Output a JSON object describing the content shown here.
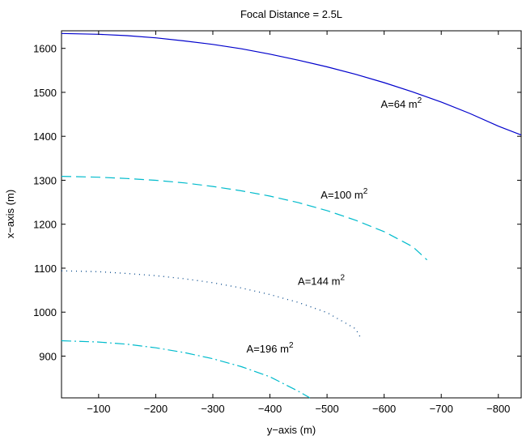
{
  "chart_data": {
    "type": "line",
    "title": "Focal Distance = 2.5L",
    "xlabel": "y−axis (m)",
    "ylabel": "x−axis (m)",
    "xlim": [
      -35,
      -840
    ],
    "ylim": [
      805,
      1640
    ],
    "x_reversed": true,
    "x_ticks": [
      -100,
      -200,
      -300,
      -400,
      -500,
      -600,
      -700,
      -800
    ],
    "x_tick_labels": [
      "−100",
      "−200",
      "−300",
      "−400",
      "−500",
      "−600",
      "−700",
      "−800"
    ],
    "y_ticks": [
      900,
      1000,
      1100,
      1200,
      1300,
      1400,
      1500,
      1600
    ],
    "y_tick_labels": [
      "900",
      "1000",
      "1100",
      "1200",
      "1300",
      "1400",
      "1500",
      "1600"
    ],
    "grid": false,
    "legend": "none",
    "series": [
      {
        "style": "solid",
        "color": "#0000cc",
        "annotation": {
          "text": "A=64 m",
          "sup": "2",
          "x": -630,
          "y": 1465
        },
        "x": [
          -35,
          -100,
          -150,
          -200,
          -250,
          -300,
          -350,
          -400,
          -450,
          -500,
          -550,
          -600,
          -650,
          -700,
          -750,
          -800,
          -840
        ],
        "y": [
          1634,
          1632,
          1629,
          1624,
          1617,
          1609,
          1599,
          1587,
          1573,
          1558,
          1541,
          1522,
          1501,
          1478,
          1452,
          1423,
          1403
        ]
      },
      {
        "style": "dashed",
        "color": "#00bbcc",
        "annotation": {
          "text": "A=100 m",
          "sup": "2",
          "x": -530,
          "y": 1258
        },
        "x": [
          -35,
          -100,
          -150,
          -200,
          -250,
          -300,
          -350,
          -400,
          -450,
          -500,
          -550,
          -600,
          -650,
          -675
        ],
        "y": [
          1309,
          1307,
          1304,
          1300,
          1294,
          1286,
          1276,
          1264,
          1249,
          1231,
          1209,
          1183,
          1149,
          1119
        ]
      },
      {
        "style": "dotted",
        "color": "#004488",
        "annotation": {
          "text": "A=144 m",
          "sup": "2",
          "x": -490,
          "y": 1062
        },
        "x": [
          -35,
          -100,
          -150,
          -200,
          -250,
          -300,
          -350,
          -400,
          -450,
          -500,
          -550,
          -560
        ],
        "y": [
          1094,
          1092,
          1088,
          1083,
          1076,
          1067,
          1055,
          1040,
          1022,
          999,
          962,
          939
        ]
      },
      {
        "style": "dashdot",
        "color": "#00bbcc",
        "annotation": {
          "text": "A=196 m",
          "sup": "2",
          "x": -400,
          "y": 908
        },
        "x": [
          -35,
          -100,
          -150,
          -200,
          -250,
          -300,
          -350,
          -400,
          -450,
          -470
        ],
        "y": [
          935,
          932,
          927,
          919,
          908,
          894,
          876,
          853,
          820,
          805
        ]
      }
    ]
  }
}
